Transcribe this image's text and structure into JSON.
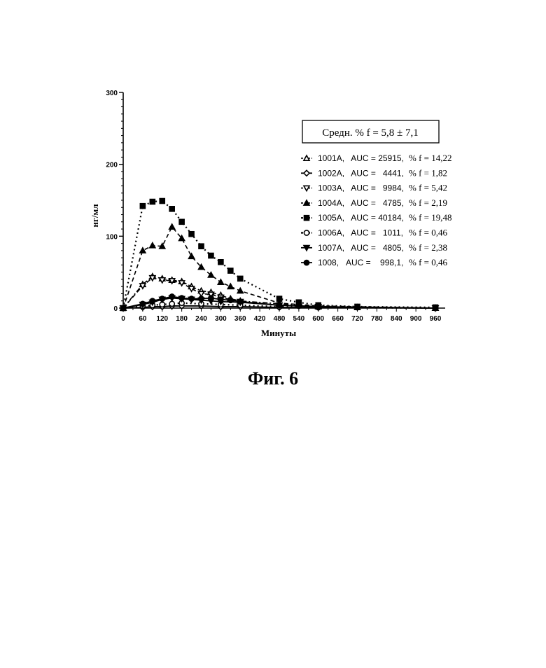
{
  "figure_caption": "Фиг. 6",
  "chart_data": {
    "type": "line",
    "ylabel": "нг/мл",
    "xlabel": "Минуты",
    "ylim": [
      0,
      300
    ],
    "xlim": [
      0,
      960
    ],
    "y_ticks": [
      "0",
      "100",
      "200",
      "300"
    ],
    "x_ticks": [
      "0",
      "60",
      "120",
      "180",
      "240",
      "300",
      "360",
      "420",
      "480",
      "540",
      "600",
      "660",
      "720",
      "780",
      "840",
      "900",
      "960"
    ],
    "summary_box": "Средн. % f = 5,8 ± 7,1",
    "legend_position": "right",
    "series": [
      {
        "name": "1001A",
        "auc_label": "AUC = 25915,",
        "f_label": "% f = 14,22",
        "marker": "triangle-up-open",
        "dash": "dashdot",
        "x": [
          0,
          60,
          90,
          120,
          150,
          180,
          210,
          240,
          270,
          300,
          330,
          360,
          480,
          540,
          600,
          720,
          960
        ],
        "y": [
          0,
          33,
          44,
          41,
          39,
          37,
          30,
          24,
          22,
          18,
          13,
          10,
          6,
          4,
          2,
          1,
          0
        ]
      },
      {
        "name": "1002A",
        "auc_label": "AUC =   4441,",
        "f_label": "% f = 1,82",
        "marker": "diamond-open",
        "dash": "solid",
        "x": [
          0,
          60,
          90,
          120,
          150,
          180,
          240,
          300,
          360,
          480,
          600,
          960
        ],
        "y": [
          0,
          1,
          2,
          2,
          3,
          3,
          3,
          2,
          2,
          1,
          1,
          0
        ]
      },
      {
        "name": "1003A",
        "auc_label": "AUC =   9984,",
        "f_label": "% f = 5,42",
        "marker": "triangle-down-open",
        "dash": "dashed",
        "x": [
          0,
          60,
          90,
          120,
          150,
          180,
          210,
          240,
          270,
          300,
          360,
          480,
          600,
          960
        ],
        "y": [
          0,
          31,
          42,
          39,
          38,
          35,
          27,
          20,
          19,
          15,
          9,
          4,
          2,
          0
        ]
      },
      {
        "name": "1004A",
        "auc_label": "AUC =   4785,",
        "f_label": "% f = 2,19",
        "marker": "triangle-up",
        "dash": "dashed",
        "x": [
          0,
          60,
          90,
          120,
          150,
          180,
          210,
          240,
          270,
          300,
          330,
          360,
          480,
          600,
          960
        ],
        "y": [
          0,
          80,
          87,
          86,
          113,
          97,
          72,
          57,
          46,
          36,
          30,
          24,
          7,
          3,
          0
        ]
      },
      {
        "name": "1005A",
        "auc_label": "AUC = 40184,",
        "f_label": "% f = 19,48",
        "marker": "square",
        "dash": "dotted",
        "x": [
          0,
          60,
          90,
          120,
          150,
          180,
          210,
          240,
          270,
          300,
          330,
          360,
          480,
          540,
          600,
          720,
          960
        ],
        "y": [
          0,
          142,
          148,
          149,
          138,
          120,
          103,
          86,
          73,
          64,
          52,
          41,
          13,
          8,
          4,
          2,
          1
        ]
      },
      {
        "name": "1006A",
        "auc_label": "AUC =   1011,",
        "f_label": "% f = 0,46",
        "marker": "circle-open",
        "dash": "dotted",
        "x": [
          0,
          60,
          90,
          120,
          150,
          180,
          240,
          300,
          360,
          480,
          600,
          960
        ],
        "y": [
          0,
          3,
          4,
          5,
          6,
          7,
          6,
          5,
          4,
          2,
          1,
          0
        ]
      },
      {
        "name": "1007A",
        "auc_label": "AUC =   4805,",
        "f_label": "% f = 2,38",
        "marker": "triangle-down",
        "dash": "solid",
        "x": [
          0,
          60,
          90,
          120,
          150,
          180,
          210,
          240,
          270,
          300,
          360,
          480,
          600,
          960
        ],
        "y": [
          0,
          5,
          8,
          12,
          14,
          13,
          12,
          11,
          10,
          9,
          8,
          4,
          2,
          0
        ]
      },
      {
        "name": "1008",
        "auc_label": "AUC =    998,1,",
        "f_label": "% f = 0,46",
        "marker": "circle",
        "dash": "solid",
        "x": [
          0,
          60,
          90,
          120,
          150,
          180,
          210,
          240,
          270,
          300,
          330,
          360,
          480,
          540,
          600,
          720,
          960
        ],
        "y": [
          0,
          6,
          10,
          13,
          16,
          14,
          13,
          13,
          14,
          12,
          11,
          9,
          4,
          3,
          2,
          1,
          0
        ]
      }
    ]
  }
}
